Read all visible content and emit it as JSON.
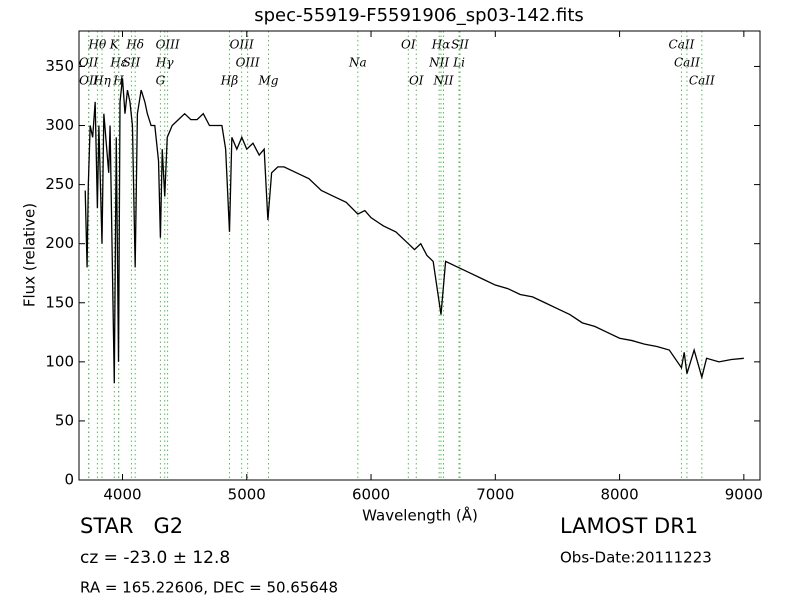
{
  "chart_data": {
    "type": "line",
    "title": "spec-55919-F5591906_sp03-142.fits",
    "xlabel": "Wavelength (Å)",
    "ylabel": "Flux (relative)",
    "color": "#000000",
    "x": [
      3700,
      3715,
      3725,
      3740,
      3760,
      3780,
      3798,
      3810,
      3835,
      3850,
      3889,
      3900,
      3934,
      3950,
      3968,
      3980,
      4000,
      4020,
      4040,
      4060,
      4080,
      4102,
      4120,
      4150,
      4180,
      4200,
      4230,
      4260,
      4290,
      4305,
      4320,
      4340,
      4360,
      4400,
      4450,
      4500,
      4550,
      4600,
      4650,
      4700,
      4750,
      4800,
      4830,
      4861,
      4880,
      4920,
      4960,
      5000,
      5050,
      5100,
      5140,
      5170,
      5200,
      5250,
      5300,
      5400,
      5500,
      5600,
      5700,
      5800,
      5894,
      5950,
      6000,
      6100,
      6200,
      6300,
      6350,
      6400,
      6450,
      6500,
      6563,
      6600,
      6700,
      6800,
      6900,
      7000,
      7100,
      7200,
      7300,
      7400,
      7500,
      7600,
      7700,
      7800,
      7900,
      8000,
      8100,
      8200,
      8300,
      8400,
      8498,
      8520,
      8542,
      8600,
      8662,
      8700,
      8800,
      8900,
      9000
    ],
    "values": [
      245,
      180,
      250,
      300,
      290,
      320,
      230,
      300,
      200,
      310,
      260,
      300,
      82,
      290,
      100,
      320,
      340,
      310,
      330,
      320,
      300,
      180,
      310,
      330,
      320,
      310,
      300,
      300,
      270,
      205,
      280,
      240,
      290,
      300,
      305,
      310,
      305,
      305,
      310,
      300,
      300,
      300,
      280,
      210,
      290,
      280,
      290,
      280,
      285,
      275,
      280,
      220,
      260,
      265,
      265,
      260,
      255,
      245,
      240,
      235,
      225,
      228,
      222,
      215,
      210,
      200,
      195,
      200,
      190,
      185,
      140,
      185,
      180,
      175,
      170,
      165,
      162,
      157,
      155,
      150,
      145,
      140,
      133,
      130,
      125,
      120,
      118,
      115,
      113,
      110,
      95,
      108,
      90,
      110,
      87,
      103,
      100,
      102,
      103
    ],
    "xlim": [
      3650,
      9130
    ],
    "ylim": [
      0,
      380
    ],
    "xticks": [
      4000,
      5000,
      6000,
      7000,
      8000,
      9000
    ],
    "yticks": [
      0,
      50,
      100,
      150,
      200,
      250,
      300,
      350
    ],
    "line_color": "#5cb85c",
    "spectral_lines": [
      {
        "label": "Hθ",
        "wavelength": 3798
      },
      {
        "label": "OII",
        "wavelength": 3727
      },
      {
        "label": "OII",
        "wavelength": 3729
      },
      {
        "label": "K",
        "wavelength": 3934
      },
      {
        "label": "Hε",
        "wavelength": 3970
      },
      {
        "label": "Hη",
        "wavelength": 3835
      },
      {
        "label": "Hδ",
        "wavelength": 4102
      },
      {
        "label": "SII",
        "wavelength": 4072
      },
      {
        "label": "H",
        "wavelength": 3968
      },
      {
        "label": "OIII",
        "wavelength": 4363
      },
      {
        "label": "Hγ",
        "wavelength": 4340
      },
      {
        "label": "G",
        "wavelength": 4305
      },
      {
        "label": "OIII",
        "wavelength": 4959
      },
      {
        "label": "OIII",
        "wavelength": 5007
      },
      {
        "label": "Hβ",
        "wavelength": 4861
      },
      {
        "label": "Hα",
        "wavelength": 6563
      },
      {
        "label": "Na",
        "wavelength": 5894
      },
      {
        "label": "Mg",
        "wavelength": 5175
      },
      {
        "label": "OI",
        "wavelength": 6300
      },
      {
        "label": "NII",
        "wavelength": 6548
      },
      {
        "label": "OI",
        "wavelength": 6364
      },
      {
        "label": "SII",
        "wavelength": 6716
      },
      {
        "label": "Li",
        "wavelength": 6708
      },
      {
        "label": "NII",
        "wavelength": 6583
      },
      {
        "label": "CaII",
        "wavelength": 8498
      },
      {
        "label": "CaII",
        "wavelength": 8542
      },
      {
        "label": "CaII",
        "wavelength": 8662
      }
    ],
    "annotations": [
      "STAR   G2",
      "cz = -23.0 ± 12.8",
      "RA = 165.22606, DEC = 50.65648",
      "LAMOST DR1",
      "Obs-Date:20111223"
    ]
  }
}
